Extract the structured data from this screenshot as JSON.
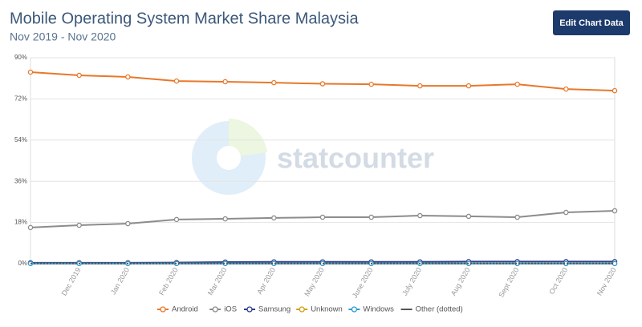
{
  "chart_data": {
    "type": "line",
    "title": "Mobile Operating System Market Share Malaysia",
    "subtitle": "Nov 2019 - Nov 2020",
    "button": "Edit Chart Data",
    "watermark": "statcounter",
    "categories": [
      null,
      "Dec 2019",
      "Jan 2020",
      "Feb 2020",
      "Mar 2020",
      "Apr 2020",
      "May 2020",
      "June 2020",
      "July 2020",
      "Aug 2020",
      "Sept 2020",
      "Oct 2020",
      "Nov 2020"
    ],
    "ylim": [
      0,
      90
    ],
    "yticks": [
      {
        "value": 0,
        "label": "0%"
      },
      {
        "value": 18,
        "label": "18%"
      },
      {
        "value": 36,
        "label": "36%"
      },
      {
        "value": 54,
        "label": "54%"
      },
      {
        "value": 72,
        "label": "72%"
      },
      {
        "value": 90,
        "label": "90%"
      }
    ],
    "grid": true,
    "legend": "bottom",
    "series": [
      {
        "name": "Android",
        "color": "#e8782a",
        "values": [
          83.7,
          82.3,
          81.6,
          79.8,
          79.5,
          79.1,
          78.6,
          78.4,
          77.7,
          77.7,
          78.4,
          76.3,
          75.6
        ]
      },
      {
        "name": "iOS",
        "color": "#8c8c8c",
        "values": [
          15.8,
          16.8,
          17.5,
          19.3,
          19.6,
          20.0,
          20.3,
          20.3,
          21.0,
          20.7,
          20.3,
          22.4,
          23.1
        ]
      },
      {
        "name": "Samsung",
        "color": "#2c3e8c",
        "values": [
          0.4,
          0.4,
          0.4,
          0.5,
          0.7,
          0.8,
          0.8,
          0.8,
          0.8,
          0.9,
          0.9,
          0.9,
          0.9
        ]
      },
      {
        "name": "Unknown",
        "color": "#d4a017",
        "values": [
          0.1,
          0.1,
          0.1,
          0.1,
          0.1,
          0.1,
          0.1,
          0.1,
          0.1,
          0.1,
          0.1,
          0.1,
          0.1
        ]
      },
      {
        "name": "Windows",
        "color": "#2e9bd6",
        "values": [
          0.05,
          0.05,
          0.05,
          0.05,
          0.05,
          0.05,
          0.05,
          0.05,
          0.05,
          0.05,
          0.05,
          0.05,
          0.05
        ]
      },
      {
        "name": "Other (dotted)",
        "color": "#555555",
        "dash": "dotted",
        "values": [
          0.1,
          0.1,
          0.1,
          0.1,
          0.1,
          0.1,
          0.1,
          0.1,
          0.1,
          0.1,
          0.1,
          0.1,
          0.1
        ]
      }
    ]
  }
}
